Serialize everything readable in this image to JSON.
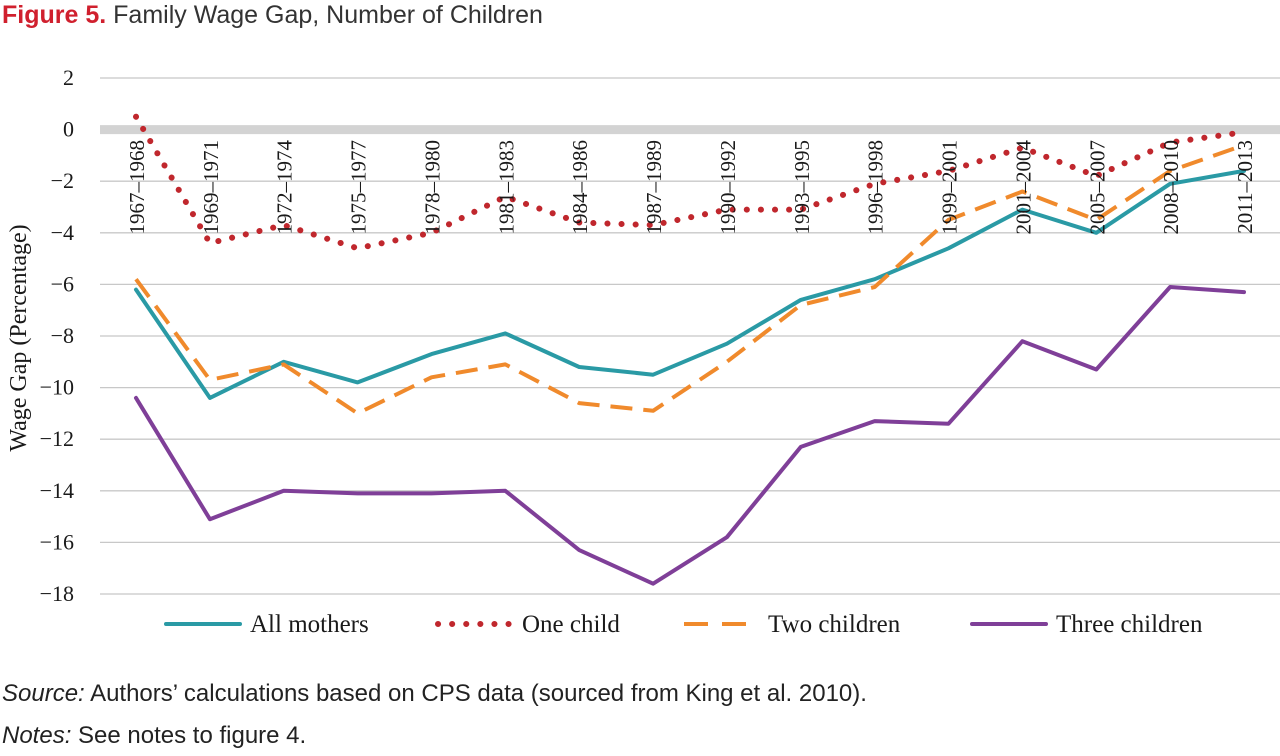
{
  "figure": {
    "label": "Figure 5.",
    "title": "Family Wage Gap, Number of Children"
  },
  "source": {
    "label": "Source:",
    "text": "Authors’ calculations based on CPS data (sourced from King et al. 2010)."
  },
  "notes": {
    "label": "Notes:",
    "text": "See notes to figure 4."
  },
  "chart_data": {
    "type": "line",
    "title": "",
    "xlabel": "",
    "ylabel": "Wage Gap (Percentage)",
    "ylim": [
      -18,
      2
    ],
    "yticks": [
      2,
      0,
      -2,
      -4,
      -6,
      -8,
      -10,
      -12,
      -14,
      -16,
      -18
    ],
    "ytick_labels": [
      "2",
      "0",
      "−2",
      "−4",
      "−6",
      "−8",
      "−10",
      "−12",
      "−14",
      "−16",
      "−18"
    ],
    "grid": true,
    "legend_position": "bottom",
    "categories": [
      "1967–1968",
      "1969–1971",
      "1972–1974",
      "1975–1977",
      "1978–1980",
      "1981–1983",
      "1984–1986",
      "1987–1989",
      "1990–1992",
      "1993–1995",
      "1996–1998",
      "1999–2001",
      "2001–2004",
      "2005–2007",
      "2008–2010",
      "2011–2013"
    ],
    "series": [
      {
        "name": "All mothers",
        "color": "#2a9aa5",
        "style": "solid",
        "values": [
          -6.2,
          -10.4,
          -9.0,
          -9.8,
          -8.7,
          -7.9,
          -9.2,
          -9.5,
          -8.3,
          -6.6,
          -5.8,
          -4.6,
          -3.1,
          -4.0,
          -2.1,
          -1.6
        ]
      },
      {
        "name": "One child",
        "color": "#c0272d",
        "style": "dotted",
        "values": [
          0.5,
          -4.4,
          -3.7,
          -4.6,
          -4.0,
          -2.6,
          -3.6,
          -3.7,
          -3.1,
          -3.1,
          -2.1,
          -1.6,
          -0.7,
          -1.8,
          -0.5,
          -0.1
        ]
      },
      {
        "name": "Two children",
        "color": "#f08a2c",
        "style": "dashed",
        "values": [
          -5.8,
          -9.7,
          -9.1,
          -11.0,
          -9.6,
          -9.1,
          -10.6,
          -10.9,
          -9.0,
          -6.8,
          -6.1,
          -3.5,
          -2.4,
          -3.5,
          -1.6,
          -0.6
        ]
      },
      {
        "name": "Three children",
        "color": "#7f3f98",
        "style": "solid",
        "values": [
          -10.4,
          -15.1,
          -14.0,
          -14.1,
          -14.1,
          -14.0,
          -16.3,
          -17.6,
          -15.8,
          -12.3,
          -11.3,
          -11.4,
          -8.2,
          -9.3,
          -6.1,
          -6.3
        ]
      }
    ]
  }
}
